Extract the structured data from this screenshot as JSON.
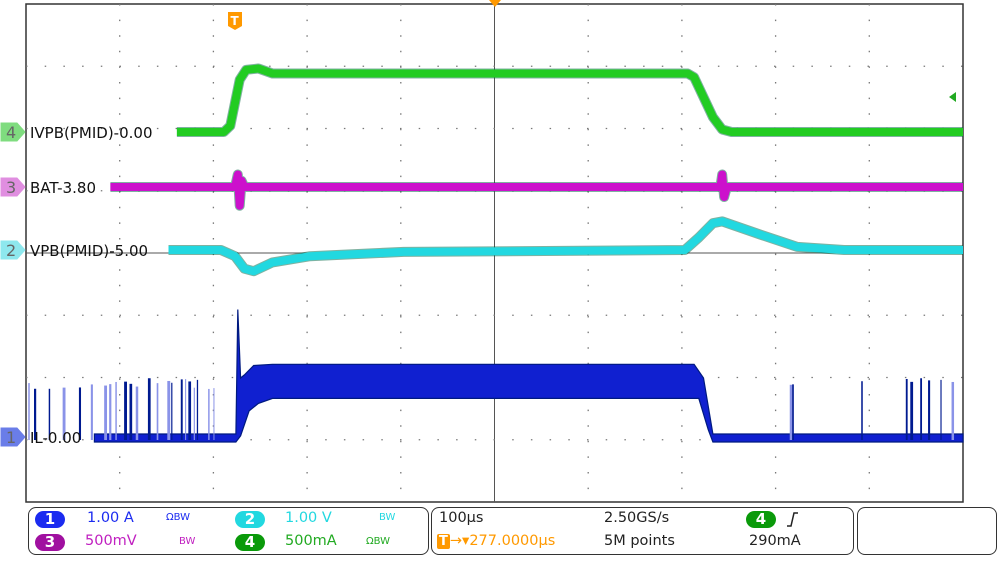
{
  "chart_data": {
    "type": "line",
    "title": "",
    "grid": true,
    "divisions": {
      "horizontal": 10,
      "vertical": 8
    },
    "timebase": "100µs",
    "x_unit": "µs relative to trigger",
    "xlim": [
      -223,
      777
    ],
    "trigger_marker": "T",
    "series": [
      {
        "channel": "4",
        "name": "IVPB(PMID)-0.00",
        "color": "#22cc22",
        "scale": "500mA",
        "unit": "A",
        "per_div": 0.5,
        "offset": 0.0,
        "start": -62,
        "points": [
          [
            -62,
            0
          ],
          [
            -12,
            0
          ],
          [
            -5,
            0.05
          ],
          [
            5,
            0.42
          ],
          [
            12,
            0.5
          ],
          [
            25,
            0.51
          ],
          [
            40,
            0.47
          ],
          [
            483,
            0.47
          ],
          [
            490,
            0.44
          ],
          [
            510,
            0.12
          ],
          [
            520,
            0.02
          ],
          [
            530,
            0
          ],
          [
            777,
            0
          ]
        ]
      },
      {
        "channel": "3",
        "name": "BAT-3.80",
        "color": "#cc11cc",
        "scale": "500mV",
        "unit": "V",
        "per_div": 0.5,
        "offset": 3.8,
        "start": -133,
        "points": [
          [
            -133,
            3.8
          ],
          [
            0,
            3.8
          ],
          [
            3,
            3.9
          ],
          [
            5,
            3.65
          ],
          [
            7,
            3.85
          ],
          [
            10,
            3.8
          ],
          [
            518,
            3.8
          ],
          [
            520,
            3.9
          ],
          [
            522,
            3.72
          ],
          [
            525,
            3.8
          ],
          [
            777,
            3.8
          ]
        ]
      },
      {
        "channel": "2",
        "name": "VPB(PMID)-5.00",
        "color": "#22d8e0",
        "scale": "1.00 V",
        "unit": "V",
        "per_div": 1.0,
        "offset": 5.0,
        "start": -71,
        "points": [
          [
            -71,
            5.0
          ],
          [
            -15,
            5.0
          ],
          [
            0,
            4.9
          ],
          [
            10,
            4.7
          ],
          [
            20,
            4.66
          ],
          [
            40,
            4.8
          ],
          [
            80,
            4.9
          ],
          [
            180,
            4.97
          ],
          [
            480,
            5.0
          ],
          [
            495,
            5.2
          ],
          [
            510,
            5.43
          ],
          [
            520,
            5.46
          ],
          [
            560,
            5.25
          ],
          [
            600,
            5.05
          ],
          [
            650,
            5.0
          ],
          [
            777,
            5.0
          ]
        ]
      },
      {
        "channel": "1",
        "name": "IL-0.00",
        "color": "#1020d0",
        "scale": "1.00 A",
        "unit": "A",
        "per_div": 1.0,
        "offset": 0.0,
        "start": -150,
        "upper": [
          [
            -150,
            0
          ],
          [
            1,
            0
          ],
          [
            3,
            2.0
          ],
          [
            6,
            0.9
          ],
          [
            10,
            0.95
          ],
          [
            20,
            1.1
          ],
          [
            40,
            1.12
          ],
          [
            490,
            1.12
          ],
          [
            500,
            0.9
          ],
          [
            510,
            0
          ],
          [
            777,
            0
          ]
        ],
        "lower": [
          [
            -150,
            0
          ],
          [
            1,
            0
          ],
          [
            6,
            0.1
          ],
          [
            15,
            0.5
          ],
          [
            25,
            0.62
          ],
          [
            40,
            0.7
          ],
          [
            495,
            0.7
          ],
          [
            505,
            0.2
          ],
          [
            510,
            0
          ],
          [
            777,
            0
          ]
        ],
        "burst_spike_level": 0.95
      }
    ]
  },
  "info": {
    "ch1": {
      "num": "1",
      "scale": "1.00 A",
      "flags": "ΩBW",
      "color": "#1b2bf0"
    },
    "ch2": {
      "num": "2",
      "scale": "1.00 V",
      "flags": "BW",
      "color": "#22d8e0"
    },
    "ch3": {
      "num": "3",
      "scale": "500mV",
      "flags": "BW",
      "color": "#a010a0"
    },
    "ch4": {
      "num": "4",
      "scale": "500mA",
      "flags": "ΩBW",
      "color": "#0a9a0a"
    },
    "timebase": "100µs",
    "sample_rate": "2.50GS/s",
    "trigger_delay": "277.0000µs",
    "trigger_icon": "T",
    "memory": "5M points",
    "trigger_source": "4",
    "trigger_slope": "rising-edge-icon",
    "trigger_level": "290mA",
    "trigger_color": "#ff9900"
  }
}
